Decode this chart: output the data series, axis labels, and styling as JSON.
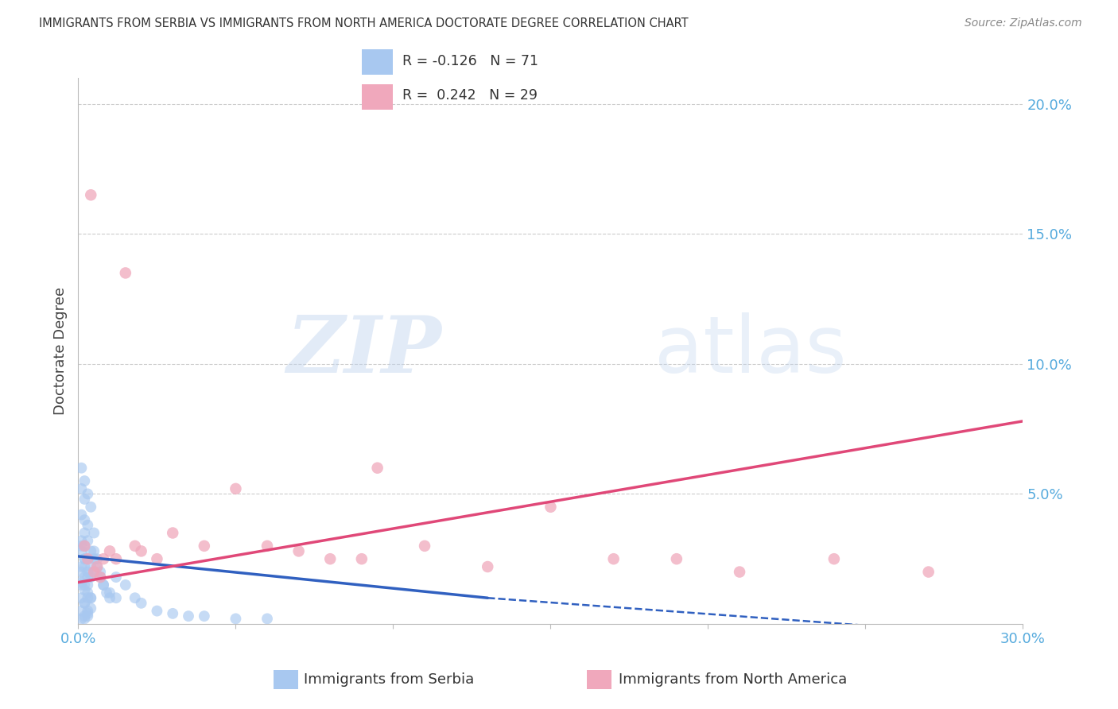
{
  "title": "IMMIGRANTS FROM SERBIA VS IMMIGRANTS FROM NORTH AMERICA DOCTORATE DEGREE CORRELATION CHART",
  "source": "Source: ZipAtlas.com",
  "ylabel": "Doctorate Degree",
  "xlabel_blue": "Immigrants from Serbia",
  "xlabel_pink": "Immigrants from North America",
  "legend_R_blue": "-0.126",
  "legend_N_blue": "71",
  "legend_R_pink": "0.242",
  "legend_N_pink": "29",
  "blue_scatter_color": "#A8C8F0",
  "pink_scatter_color": "#F0A8BC",
  "blue_line_color": "#3060C0",
  "pink_line_color": "#E04878",
  "watermark_zip": "ZIP",
  "watermark_atlas": "atlas",
  "xlim": [
    0.0,
    0.3
  ],
  "ylim": [
    0.0,
    0.21
  ],
  "ytick_vals": [
    0.05,
    0.1,
    0.15,
    0.2
  ],
  "ytick_labels": [
    "5.0%",
    "10.0%",
    "15.0%",
    "20.0%"
  ],
  "grid_color": "#CCCCCC",
  "axis_color": "#BBBBBB",
  "tick_label_color": "#55AADD",
  "title_color": "#333333",
  "source_color": "#888888",
  "serbia_x": [
    0.002,
    0.003,
    0.001,
    0.004,
    0.002,
    0.001,
    0.003,
    0.005,
    0.002,
    0.001,
    0.003,
    0.004,
    0.002,
    0.001,
    0.005,
    0.002,
    0.003,
    0.001,
    0.004,
    0.002,
    0.001,
    0.003,
    0.002,
    0.001,
    0.004,
    0.002,
    0.003,
    0.001,
    0.002,
    0.003,
    0.005,
    0.002,
    0.001,
    0.003,
    0.004,
    0.002,
    0.001,
    0.003,
    0.002,
    0.004,
    0.001,
    0.002,
    0.003,
    0.001,
    0.002,
    0.003,
    0.004,
    0.001,
    0.002,
    0.003,
    0.006,
    0.007,
    0.008,
    0.009,
    0.01,
    0.012,
    0.015,
    0.018,
    0.02,
    0.025,
    0.03,
    0.035,
    0.04,
    0.05,
    0.06,
    0.005,
    0.006,
    0.007,
    0.008,
    0.01,
    0.012
  ],
  "serbia_y": [
    0.055,
    0.05,
    0.06,
    0.045,
    0.048,
    0.042,
    0.038,
    0.035,
    0.04,
    0.052,
    0.032,
    0.028,
    0.035,
    0.03,
    0.025,
    0.03,
    0.025,
    0.028,
    0.022,
    0.025,
    0.022,
    0.02,
    0.025,
    0.032,
    0.018,
    0.015,
    0.018,
    0.02,
    0.022,
    0.015,
    0.02,
    0.018,
    0.015,
    0.012,
    0.01,
    0.013,
    0.016,
    0.01,
    0.008,
    0.01,
    0.01,
    0.008,
    0.005,
    0.005,
    0.003,
    0.004,
    0.006,
    0.002,
    0.002,
    0.003,
    0.025,
    0.02,
    0.015,
    0.012,
    0.01,
    0.018,
    0.015,
    0.01,
    0.008,
    0.005,
    0.004,
    0.003,
    0.003,
    0.002,
    0.002,
    0.028,
    0.022,
    0.018,
    0.015,
    0.012,
    0.01
  ],
  "northam_x": [
    0.002,
    0.003,
    0.004,
    0.005,
    0.006,
    0.007,
    0.008,
    0.01,
    0.012,
    0.015,
    0.018,
    0.02,
    0.025,
    0.03,
    0.04,
    0.05,
    0.06,
    0.07,
    0.08,
    0.095,
    0.11,
    0.13,
    0.15,
    0.17,
    0.19,
    0.21,
    0.24,
    0.27,
    0.09
  ],
  "northam_y": [
    0.03,
    0.025,
    0.165,
    0.02,
    0.022,
    0.018,
    0.025,
    0.028,
    0.025,
    0.135,
    0.03,
    0.028,
    0.025,
    0.035,
    0.03,
    0.052,
    0.03,
    0.028,
    0.025,
    0.06,
    0.03,
    0.022,
    0.045,
    0.025,
    0.025,
    0.02,
    0.025,
    0.02,
    0.025
  ],
  "blue_line_x0": 0.0,
  "blue_line_x_solid_end": 0.13,
  "blue_line_x_end": 0.3,
  "blue_line_y0": 0.026,
  "blue_line_y_solid_end": 0.01,
  "blue_line_y_end": -0.005,
  "pink_line_x0": 0.0,
  "pink_line_x_end": 0.3,
  "pink_line_y0": 0.016,
  "pink_line_y_end": 0.078
}
